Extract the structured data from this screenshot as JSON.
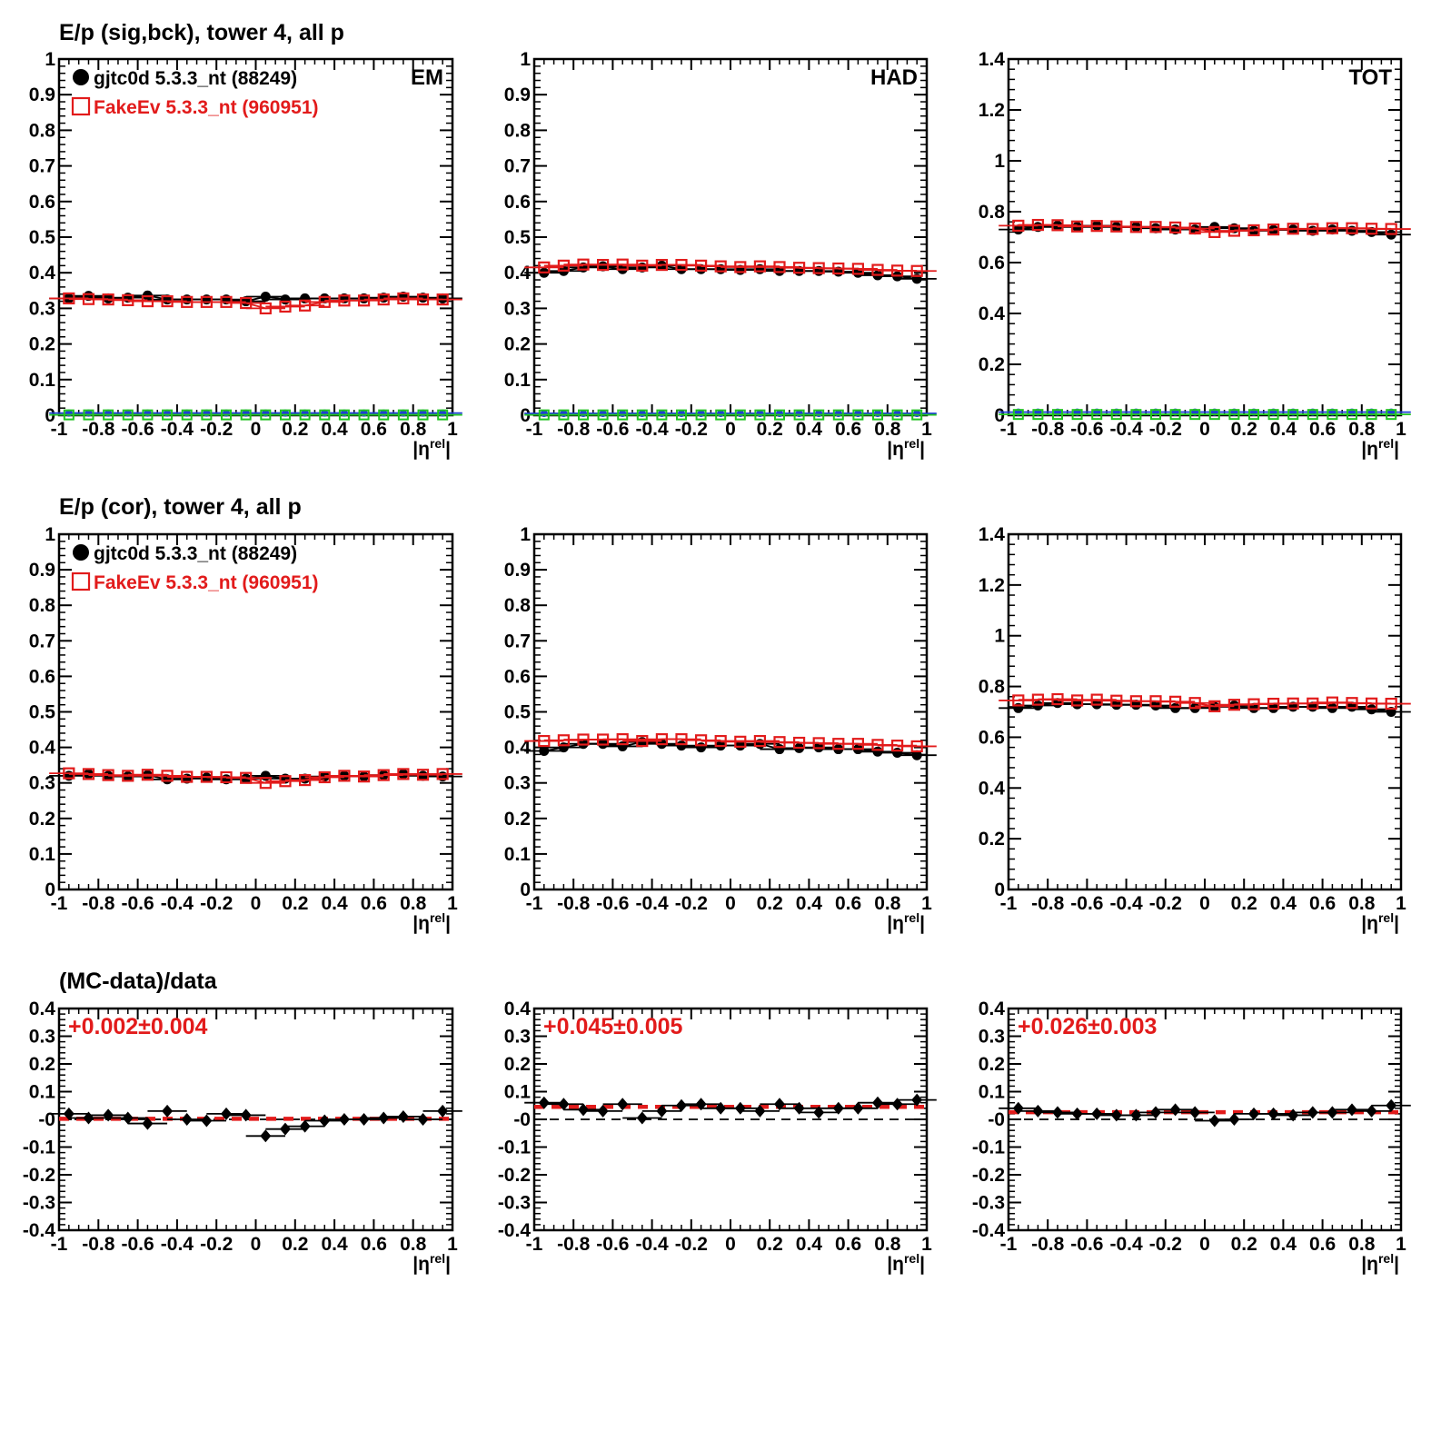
{
  "row_titles": [
    "E/p (sig,bck), tower 4, all p",
    "E/p (cor), tower 4, all p",
    "(MC-data)/data"
  ],
  "xlabel": "|ηrel|",
  "colors": {
    "data": "#000000",
    "mc": "#e21b1b",
    "bkg_data": "#1f3fd6",
    "bkg_mc": "#22c322"
  },
  "legend": [
    {
      "label": "gjtc0d 5.3.3_nt (88249)",
      "marker": "filled-circle",
      "color": "#000000"
    },
    {
      "label": "FakeEv 5.3.3_nt (960951)",
      "marker": "open-square",
      "color": "#e21b1b"
    }
  ],
  "chart_data": [
    {
      "id": "sig-em",
      "type": "scatter",
      "tag": "EM",
      "legend": true,
      "xlim": [
        -1,
        1
      ],
      "ylim": [
        0,
        1
      ],
      "xticks": [
        "-1",
        "-0.8",
        "-0.6",
        "-0.4",
        "-0.2",
        "0",
        "0.2",
        "0.4",
        "0.6",
        "0.8",
        "1"
      ],
      "yticks": [
        "0",
        "0.1",
        "0.2",
        "0.3",
        "0.4",
        "0.5",
        "0.6",
        "0.7",
        "0.8",
        "0.9",
        "1"
      ],
      "x": [
        -0.95,
        -0.85,
        -0.75,
        -0.65,
        -0.55,
        -0.45,
        -0.35,
        -0.25,
        -0.15,
        -0.05,
        0.05,
        0.15,
        0.25,
        0.35,
        0.45,
        0.55,
        0.65,
        0.75,
        0.85,
        0.95
      ],
      "series": [
        {
          "name": "gjtc0d 5.3.3_nt (88249)",
          "values": [
            0.328,
            0.335,
            0.328,
            0.33,
            0.336,
            0.325,
            0.325,
            0.325,
            0.325,
            0.32,
            0.333,
            0.325,
            0.328,
            0.328,
            0.328,
            0.328,
            0.33,
            0.333,
            0.33,
            0.328
          ]
        },
        {
          "name": "FakeEv 5.3.3_nt (960951)",
          "values": [
            0.328,
            0.326,
            0.325,
            0.323,
            0.32,
            0.32,
            0.318,
            0.318,
            0.318,
            0.315,
            0.3,
            0.305,
            0.308,
            0.318,
            0.322,
            0.322,
            0.325,
            0.328,
            0.325,
            0.325
          ]
        },
        {
          "values": [
            0.006,
            0.006,
            0.006,
            0.006,
            0.006,
            0.006,
            0.006,
            0.006,
            0.006,
            0.006,
            0.006,
            0.006,
            0.006,
            0.006,
            0.006,
            0.006,
            0.006,
            0.006,
            0.006,
            0.006
          ]
        },
        {
          "values": [
            0.001,
            0.001,
            0.001,
            0.001,
            0.001,
            0.001,
            0.001,
            0.001,
            0.001,
            0.001,
            0.001,
            0.001,
            0.001,
            0.001,
            0.001,
            0.001,
            0.001,
            0.001,
            0.001,
            0.001
          ]
        }
      ]
    },
    {
      "id": "sig-had",
      "type": "scatter",
      "tag": "HAD",
      "legend": false,
      "xlim": [
        -1,
        1
      ],
      "ylim": [
        0,
        1
      ],
      "xticks": [
        "-1",
        "-0.8",
        "-0.6",
        "-0.4",
        "-0.2",
        "0",
        "0.2",
        "0.4",
        "0.6",
        "0.8",
        "1"
      ],
      "yticks": [
        "0",
        "0.1",
        "0.2",
        "0.3",
        "0.4",
        "0.5",
        "0.6",
        "0.7",
        "0.8",
        "0.9",
        "1"
      ],
      "x": [
        -0.95,
        -0.85,
        -0.75,
        -0.65,
        -0.55,
        -0.45,
        -0.35,
        -0.25,
        -0.15,
        -0.05,
        0.05,
        0.15,
        0.25,
        0.35,
        0.45,
        0.55,
        0.65,
        0.75,
        0.85,
        0.95
      ],
      "series": [
        {
          "name": "gjtc0d 5.3.3_nt (88249)",
          "values": [
            0.4,
            0.405,
            0.415,
            0.418,
            0.41,
            0.415,
            0.42,
            0.41,
            0.41,
            0.41,
            0.408,
            0.41,
            0.405,
            0.405,
            0.405,
            0.403,
            0.4,
            0.393,
            0.39,
            0.383
          ]
        },
        {
          "name": "FakeEv 5.3.3_nt (960951)",
          "values": [
            0.415,
            0.42,
            0.423,
            0.422,
            0.423,
            0.42,
            0.422,
            0.422,
            0.42,
            0.418,
            0.416,
            0.418,
            0.416,
            0.414,
            0.413,
            0.412,
            0.411,
            0.408,
            0.406,
            0.405
          ]
        },
        {
          "values": [
            0.005,
            0.005,
            0.005,
            0.005,
            0.005,
            0.005,
            0.005,
            0.005,
            0.005,
            0.005,
            0.005,
            0.005,
            0.005,
            0.005,
            0.005,
            0.005,
            0.005,
            0.005,
            0.005,
            0.005
          ]
        },
        {
          "values": [
            0.001,
            0.001,
            0.001,
            0.001,
            0.001,
            0.001,
            0.001,
            0.001,
            0.001,
            0.001,
            0.001,
            0.001,
            0.001,
            0.001,
            0.001,
            0.001,
            0.001,
            0.001,
            0.001,
            0.001
          ]
        }
      ]
    },
    {
      "id": "sig-tot",
      "type": "scatter",
      "tag": "TOT",
      "legend": false,
      "xlim": [
        -1,
        1
      ],
      "ylim": [
        0,
        1.4
      ],
      "xticks": [
        "-1",
        "-0.8",
        "-0.6",
        "-0.4",
        "-0.2",
        "0",
        "0.2",
        "0.4",
        "0.6",
        "0.8",
        "1"
      ],
      "yticks": [
        "0",
        "0.2",
        "0.4",
        "0.6",
        "0.8",
        "1",
        "1.2",
        "1.4"
      ],
      "x": [
        -0.95,
        -0.85,
        -0.75,
        -0.65,
        -0.55,
        -0.45,
        -0.35,
        -0.25,
        -0.15,
        -0.05,
        0.05,
        0.15,
        0.25,
        0.35,
        0.45,
        0.55,
        0.65,
        0.75,
        0.85,
        0.95
      ],
      "series": [
        {
          "name": "gjtc0d 5.3.3_nt (88249)",
          "values": [
            0.73,
            0.74,
            0.745,
            0.74,
            0.745,
            0.74,
            0.74,
            0.735,
            0.73,
            0.73,
            0.74,
            0.735,
            0.725,
            0.728,
            0.73,
            0.725,
            0.73,
            0.725,
            0.72,
            0.71
          ]
        },
        {
          "name": "FakeEv 5.3.3_nt (960951)",
          "values": [
            0.745,
            0.748,
            0.747,
            0.742,
            0.744,
            0.742,
            0.74,
            0.74,
            0.738,
            0.734,
            0.72,
            0.725,
            0.727,
            0.73,
            0.733,
            0.732,
            0.735,
            0.735,
            0.733,
            0.732
          ]
        },
        {
          "values": [
            0.012,
            0.012,
            0.012,
            0.012,
            0.012,
            0.012,
            0.012,
            0.012,
            0.012,
            0.012,
            0.012,
            0.012,
            0.012,
            0.012,
            0.012,
            0.012,
            0.012,
            0.012,
            0.012,
            0.012
          ]
        },
        {
          "values": [
            0.003,
            0.003,
            0.003,
            0.003,
            0.003,
            0.003,
            0.003,
            0.003,
            0.003,
            0.003,
            0.003,
            0.003,
            0.003,
            0.003,
            0.003,
            0.003,
            0.003,
            0.003,
            0.003,
            0.003
          ]
        }
      ]
    },
    {
      "id": "cor-em",
      "type": "scatter",
      "tag": "",
      "legend": true,
      "xlim": [
        -1,
        1
      ],
      "ylim": [
        0,
        1
      ],
      "xticks": [
        "-1",
        "-0.8",
        "-0.6",
        "-0.4",
        "-0.2",
        "0",
        "0.2",
        "0.4",
        "0.6",
        "0.8",
        "1"
      ],
      "yticks": [
        "0",
        "0.1",
        "0.2",
        "0.3",
        "0.4",
        "0.5",
        "0.6",
        "0.7",
        "0.8",
        "0.9",
        "1"
      ],
      "x": [
        -0.95,
        -0.85,
        -0.75,
        -0.65,
        -0.55,
        -0.45,
        -0.35,
        -0.25,
        -0.15,
        -0.05,
        0.05,
        0.15,
        0.25,
        0.35,
        0.45,
        0.55,
        0.65,
        0.75,
        0.85,
        0.95
      ],
      "series": [
        {
          "name": "gjtc0d 5.3.3_nt (88249)",
          "values": [
            0.32,
            0.325,
            0.32,
            0.318,
            0.322,
            0.31,
            0.312,
            0.315,
            0.31,
            0.312,
            0.32,
            0.312,
            0.312,
            0.318,
            0.32,
            0.318,
            0.322,
            0.325,
            0.32,
            0.318
          ]
        },
        {
          "name": "FakeEv 5.3.3_nt (960951)",
          "values": [
            0.327,
            0.325,
            0.322,
            0.32,
            0.323,
            0.32,
            0.317,
            0.317,
            0.316,
            0.314,
            0.3,
            0.305,
            0.308,
            0.316,
            0.32,
            0.318,
            0.322,
            0.325,
            0.323,
            0.325
          ]
        }
      ]
    },
    {
      "id": "cor-had",
      "type": "scatter",
      "tag": "",
      "legend": false,
      "xlim": [
        -1,
        1
      ],
      "ylim": [
        0,
        1
      ],
      "xticks": [
        "-1",
        "-0.8",
        "-0.6",
        "-0.4",
        "-0.2",
        "0",
        "0.2",
        "0.4",
        "0.6",
        "0.8",
        "1"
      ],
      "yticks": [
        "0",
        "0.1",
        "0.2",
        "0.3",
        "0.4",
        "0.5",
        "0.6",
        "0.7",
        "0.8",
        "0.9",
        "1"
      ],
      "x": [
        -0.95,
        -0.85,
        -0.75,
        -0.65,
        -0.55,
        -0.45,
        -0.35,
        -0.25,
        -0.15,
        -0.05,
        0.05,
        0.15,
        0.25,
        0.35,
        0.45,
        0.55,
        0.65,
        0.75,
        0.85,
        0.95
      ],
      "series": [
        {
          "name": "gjtc0d 5.3.3_nt (88249)",
          "values": [
            0.39,
            0.4,
            0.41,
            0.41,
            0.403,
            0.415,
            0.41,
            0.405,
            0.4,
            0.405,
            0.405,
            0.41,
            0.395,
            0.398,
            0.4,
            0.395,
            0.395,
            0.388,
            0.385,
            0.378
          ]
        },
        {
          "name": "FakeEv 5.3.3_nt (960951)",
          "values": [
            0.418,
            0.42,
            0.422,
            0.422,
            0.423,
            0.418,
            0.423,
            0.423,
            0.42,
            0.418,
            0.416,
            0.418,
            0.415,
            0.413,
            0.412,
            0.41,
            0.41,
            0.407,
            0.405,
            0.403
          ]
        }
      ]
    },
    {
      "id": "cor-tot",
      "type": "scatter",
      "tag": "",
      "legend": false,
      "xlim": [
        -1,
        1
      ],
      "ylim": [
        0,
        1.4
      ],
      "xticks": [
        "-1",
        "-0.8",
        "-0.6",
        "-0.4",
        "-0.2",
        "0",
        "0.2",
        "0.4",
        "0.6",
        "0.8",
        "1"
      ],
      "yticks": [
        "0",
        "0.2",
        "0.4",
        "0.6",
        "0.8",
        "1",
        "1.2",
        "1.4"
      ],
      "x": [
        -0.95,
        -0.85,
        -0.75,
        -0.65,
        -0.55,
        -0.45,
        -0.35,
        -0.25,
        -0.15,
        -0.05,
        0.05,
        0.15,
        0.25,
        0.35,
        0.45,
        0.55,
        0.65,
        0.75,
        0.85,
        0.95
      ],
      "series": [
        {
          "name": "gjtc0d 5.3.3_nt (88249)",
          "values": [
            0.715,
            0.725,
            0.735,
            0.73,
            0.73,
            0.728,
            0.728,
            0.725,
            0.715,
            0.715,
            0.72,
            0.725,
            0.715,
            0.715,
            0.72,
            0.72,
            0.715,
            0.72,
            0.71,
            0.7
          ]
        },
        {
          "name": "FakeEv 5.3.3_nt (960951)",
          "values": [
            0.745,
            0.748,
            0.75,
            0.745,
            0.748,
            0.744,
            0.742,
            0.742,
            0.74,
            0.735,
            0.722,
            0.728,
            0.73,
            0.732,
            0.733,
            0.733,
            0.737,
            0.735,
            0.733,
            0.732
          ]
        }
      ]
    },
    {
      "id": "ratio-em",
      "type": "scatter",
      "tag": "",
      "legend": false,
      "fit_label": "+0.002±0.004",
      "fit": 0.002,
      "xlim": [
        -1,
        1
      ],
      "ylim": [
        -0.4,
        0.4
      ],
      "xticks": [
        "-1",
        "-0.8",
        "-0.6",
        "-0.4",
        "-0.2",
        "0",
        "0.2",
        "0.4",
        "0.6",
        "0.8",
        "1"
      ],
      "yticks": [
        "-0.4",
        "-0.3",
        "-0.2",
        "-0.1",
        "-0",
        "0.1",
        "0.2",
        "0.3",
        "0.4"
      ],
      "x": [
        -0.95,
        -0.85,
        -0.75,
        -0.65,
        -0.55,
        -0.45,
        -0.35,
        -0.25,
        -0.15,
        -0.05,
        0.05,
        0.15,
        0.25,
        0.35,
        0.45,
        0.55,
        0.65,
        0.75,
        0.85,
        0.95
      ],
      "series": [
        {
          "values": [
            0.02,
            0.005,
            0.015,
            0.005,
            -0.015,
            0.03,
            0.0,
            -0.005,
            0.02,
            0.015,
            -0.06,
            -0.035,
            -0.025,
            -0.005,
            0.0,
            0.0,
            0.005,
            0.01,
            0.0,
            0.03
          ]
        }
      ]
    },
    {
      "id": "ratio-had",
      "type": "scatter",
      "tag": "",
      "legend": false,
      "fit_label": "+0.045±0.005",
      "fit": 0.045,
      "xlim": [
        -1,
        1
      ],
      "ylim": [
        -0.4,
        0.4
      ],
      "xticks": [
        "-1",
        "-0.8",
        "-0.6",
        "-0.4",
        "-0.2",
        "0",
        "0.2",
        "0.4",
        "0.6",
        "0.8",
        "1"
      ],
      "yticks": [
        "-0.4",
        "-0.3",
        "-0.2",
        "-0.1",
        "-0",
        "0.1",
        "0.2",
        "0.3",
        "0.4"
      ],
      "x": [
        -0.95,
        -0.85,
        -0.75,
        -0.65,
        -0.55,
        -0.45,
        -0.35,
        -0.25,
        -0.15,
        -0.05,
        0.05,
        0.15,
        0.25,
        0.35,
        0.45,
        0.55,
        0.65,
        0.75,
        0.85,
        0.95
      ],
      "series": [
        {
          "values": [
            0.06,
            0.055,
            0.035,
            0.03,
            0.055,
            0.005,
            0.03,
            0.05,
            0.055,
            0.04,
            0.04,
            0.03,
            0.055,
            0.04,
            0.025,
            0.04,
            0.04,
            0.06,
            0.055,
            0.07
          ]
        }
      ]
    },
    {
      "id": "ratio-tot",
      "type": "scatter",
      "tag": "",
      "legend": false,
      "fit_label": "+0.026±0.003",
      "fit": 0.026,
      "xlim": [
        -1,
        1
      ],
      "ylim": [
        -0.4,
        0.4
      ],
      "xticks": [
        "-1",
        "-0.8",
        "-0.6",
        "-0.4",
        "-0.2",
        "0",
        "0.2",
        "0.4",
        "0.6",
        "0.8",
        "1"
      ],
      "yticks": [
        "-0.4",
        "-0.3",
        "-0.2",
        "-0.1",
        "-0",
        "0.1",
        "0.2",
        "0.3",
        "0.4"
      ],
      "x": [
        -0.95,
        -0.85,
        -0.75,
        -0.65,
        -0.55,
        -0.45,
        -0.35,
        -0.25,
        -0.15,
        -0.05,
        0.05,
        0.15,
        0.25,
        0.35,
        0.45,
        0.55,
        0.65,
        0.75,
        0.85,
        0.95
      ],
      "series": [
        {
          "values": [
            0.04,
            0.03,
            0.025,
            0.02,
            0.02,
            0.015,
            0.015,
            0.025,
            0.035,
            0.025,
            -0.005,
            0.0,
            0.02,
            0.02,
            0.015,
            0.025,
            0.025,
            0.035,
            0.03,
            0.05
          ]
        }
      ]
    }
  ]
}
